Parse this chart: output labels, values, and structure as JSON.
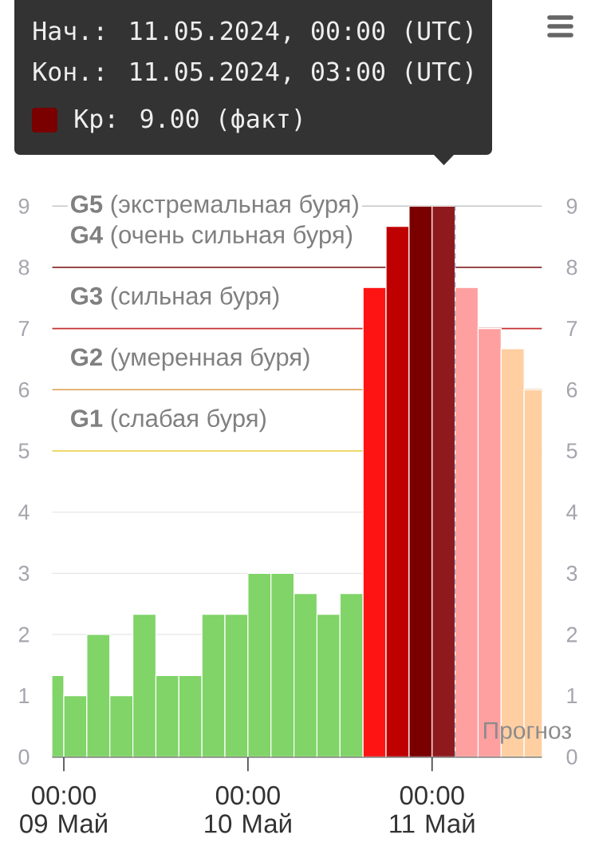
{
  "chart_data": {
    "type": "bar",
    "x": [
      "2024-05-08T22:30",
      "2024-05-09T01:30",
      "2024-05-09T04:30",
      "2024-05-09T07:30",
      "2024-05-09T10:30",
      "2024-05-09T13:30",
      "2024-05-09T16:30",
      "2024-05-09T19:30",
      "2024-05-09T22:30",
      "2024-05-10T01:30",
      "2024-05-10T04:30",
      "2024-05-10T07:30",
      "2024-05-10T10:30",
      "2024-05-10T13:30",
      "2024-05-10T16:30",
      "2024-05-10T19:30",
      "2024-05-10T22:30",
      "2024-05-11T01:30",
      "2024-05-11T04:30",
      "2024-05-11T07:30",
      "2024-05-11T10:30",
      "2024-05-11T13:30"
    ],
    "values": [
      1.33,
      1,
      2,
      1,
      2.33,
      1.33,
      1.33,
      2.33,
      2.33,
      3,
      3,
      2.67,
      2.33,
      2.67,
      7.67,
      8.67,
      9,
      9,
      7.67,
      7,
      6.67,
      6
    ],
    "colors": [
      "#80d468",
      "#80d468",
      "#80d468",
      "#80d468",
      "#80d468",
      "#80d468",
      "#80d468",
      "#80d468",
      "#80d468",
      "#80d468",
      "#80d468",
      "#80d468",
      "#80d468",
      "#80d468",
      "#ff1414",
      "#bf0000",
      "#7a0000",
      "#8e1a1e",
      "#ffa0a0",
      "#ffa0a0",
      "#ffcfa2",
      "#ffcfa2"
    ],
    "xlim": [
      "2024-05-08T22:30",
      "2024-05-11T14:18"
    ],
    "xticks": [
      {
        "value": "2024-05-09T00:00",
        "label": "00:00 09 Май"
      },
      {
        "value": "2024-05-10T00:00",
        "label": "00:00 10 Май"
      },
      {
        "value": "2024-05-11T00:00",
        "label": "00:00 11 Май"
      }
    ],
    "ylim": [
      0,
      9
    ],
    "yticks": [
      0,
      1,
      2,
      3,
      4,
      5,
      6,
      7,
      8,
      9
    ],
    "y2lim": [
      0,
      9
    ],
    "y2ticks": [
      0,
      1,
      2,
      3,
      4,
      5,
      6,
      7,
      8,
      9
    ],
    "grid": "y",
    "ref_lines": [
      {
        "axis": "y",
        "value": 9,
        "label": "**G5** (экстремальная буря)",
        "color": "#c8c8c8"
      },
      {
        "axis": "y",
        "value": 8,
        "label": "**G4** (очень сильная буря)",
        "color": "#7a1010"
      },
      {
        "axis": "y",
        "value": 7,
        "label": "**G3** (сильная буря)",
        "color": "#c83030"
      },
      {
        "axis": "y",
        "value": 6,
        "label": "**G2** (умеренная буря)",
        "color": "#e0a050"
      },
      {
        "axis": "y",
        "value": 5,
        "label": "**G1** (слабая буря)",
        "color": "#f0d040"
      },
      {
        "axis": "x",
        "value": "2024-05-11T03:00",
        "label": "Прогноз",
        "color": "#9aa4c0",
        "line_style": "dashed"
      }
    ],
    "annotations": [
      "Нач.: 11.05.2024, 00:00 (UTC)",
      "Кон.: 11.05.2024, 03:00 (UTC)",
      "Kp: 9.00 (факт)"
    ]
  }
}
